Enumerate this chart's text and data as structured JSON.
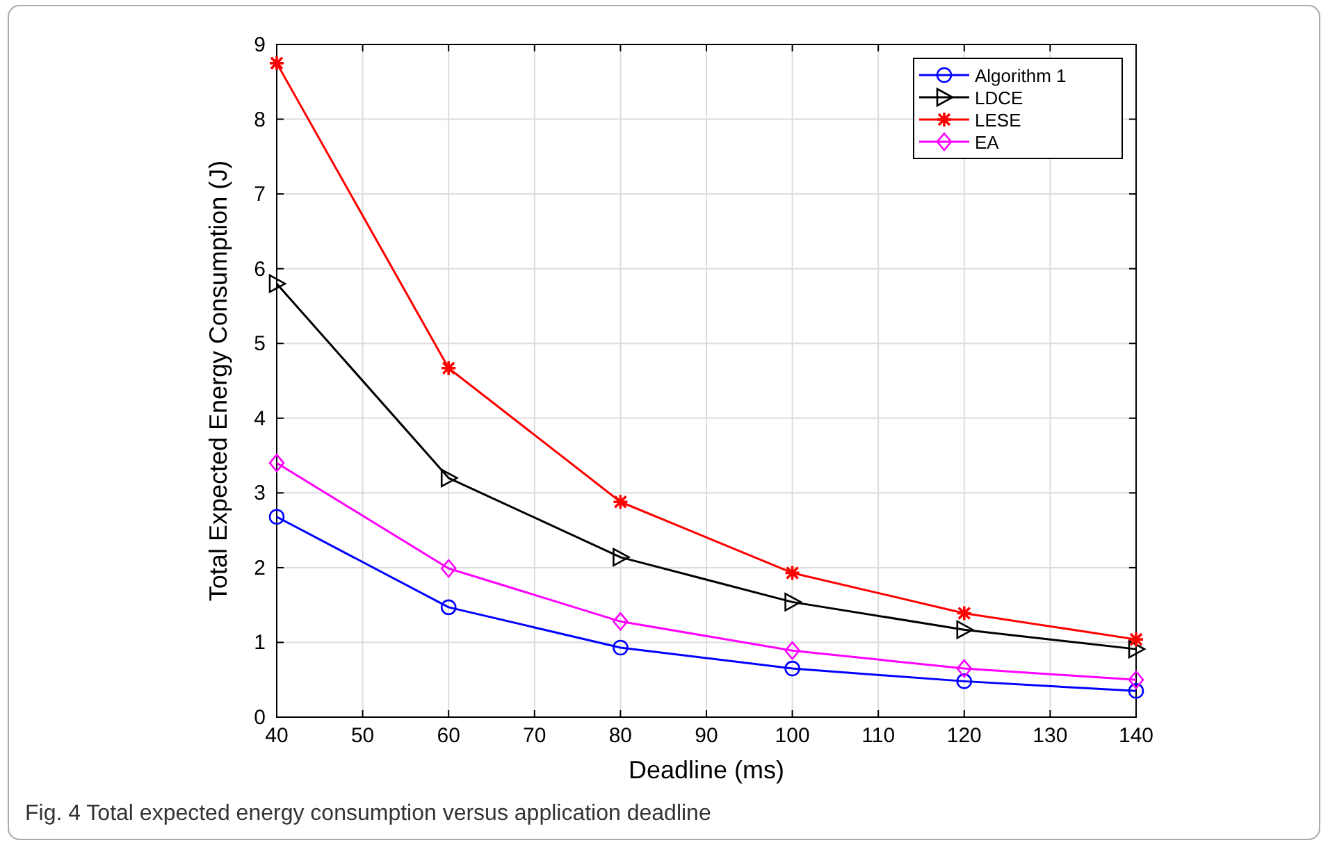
{
  "chart_data": {
    "type": "line",
    "xlabel": "Deadline (ms)",
    "ylabel": "Total Expected Energy Consumption (J)",
    "x": [
      40,
      60,
      80,
      100,
      120,
      140
    ],
    "xlim": [
      40,
      140
    ],
    "xticks": [
      40,
      50,
      60,
      70,
      80,
      90,
      100,
      110,
      120,
      130,
      140
    ],
    "ylim": [
      0,
      9
    ],
    "yticks": [
      0,
      1,
      2,
      3,
      4,
      5,
      6,
      7,
      8,
      9
    ],
    "grid": true,
    "legend": "top right",
    "line_style": "solid",
    "annotations": [
      "Fig. 4  Total expected energy consumption versus application deadline"
    ],
    "series": [
      {
        "name": "Algorithm 1",
        "color": "#0000ff",
        "marker": "circle",
        "values": [
          2.68,
          1.47,
          0.93,
          0.65,
          0.48,
          0.35
        ]
      },
      {
        "name": "LDCE",
        "color": "#000000",
        "marker": "triangle",
        "values": [
          5.8,
          3.2,
          2.14,
          1.54,
          1.17,
          0.91
        ]
      },
      {
        "name": "LESE",
        "color": "#ff0000",
        "marker": "cross",
        "values": [
          8.75,
          4.67,
          2.88,
          1.93,
          1.39,
          1.04
        ]
      },
      {
        "name": "EA",
        "color": "#ff00ff",
        "marker": "diamond",
        "values": [
          3.4,
          1.99,
          1.28,
          0.89,
          0.65,
          0.5
        ]
      }
    ]
  }
}
